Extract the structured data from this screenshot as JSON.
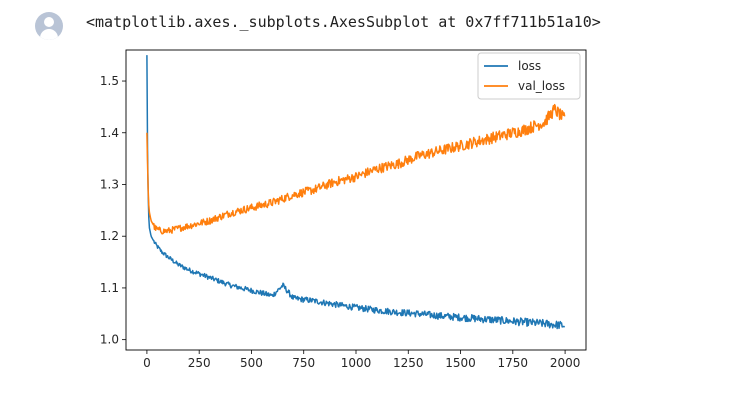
{
  "output": {
    "repr_text": "<matplotlib.axes._subplots.AxesSubplot at 0x7ff711b51a10>"
  },
  "chart_data": {
    "type": "line",
    "title": "",
    "xlabel": "",
    "ylabel": "",
    "xlim": [
      -100,
      2100
    ],
    "ylim": [
      0.98,
      1.56
    ],
    "xticks": [
      0,
      250,
      500,
      750,
      1000,
      1250,
      1500,
      1750,
      2000
    ],
    "yticks": [
      1.0,
      1.1,
      1.2,
      1.3,
      1.4,
      1.5
    ],
    "xtick_labels": [
      "0",
      "250",
      "500",
      "750",
      "1000",
      "1250",
      "1500",
      "1750",
      "2000"
    ],
    "ytick_labels": [
      "1.0",
      "1.1",
      "1.2",
      "1.3",
      "1.4",
      "1.5"
    ],
    "grid": false,
    "legend_position": "upper right",
    "series": [
      {
        "name": "loss",
        "color": "#1f77b4",
        "x": [
          0,
          2,
          5,
          10,
          20,
          40,
          70,
          100,
          150,
          200,
          300,
          400,
          500,
          600,
          650,
          700,
          800,
          900,
          1000,
          1100,
          1200,
          1300,
          1400,
          1500,
          1600,
          1700,
          1800,
          1900,
          2000
        ],
        "y": [
          1.55,
          1.4,
          1.3,
          1.22,
          1.2,
          1.185,
          1.17,
          1.16,
          1.145,
          1.135,
          1.12,
          1.105,
          1.095,
          1.085,
          1.105,
          1.08,
          1.075,
          1.068,
          1.062,
          1.057,
          1.053,
          1.05,
          1.046,
          1.043,
          1.04,
          1.037,
          1.034,
          1.031,
          1.027
        ]
      },
      {
        "name": "val_loss",
        "color": "#ff7f0e",
        "x": [
          0,
          2,
          5,
          10,
          20,
          40,
          70,
          100,
          150,
          200,
          300,
          400,
          500,
          600,
          700,
          800,
          900,
          1000,
          1100,
          1200,
          1300,
          1400,
          1500,
          1600,
          1700,
          1800,
          1900,
          1950,
          2000
        ],
        "y": [
          1.4,
          1.36,
          1.3,
          1.25,
          1.23,
          1.215,
          1.21,
          1.21,
          1.215,
          1.22,
          1.23,
          1.245,
          1.255,
          1.265,
          1.28,
          1.29,
          1.305,
          1.315,
          1.33,
          1.34,
          1.355,
          1.365,
          1.375,
          1.385,
          1.395,
          1.405,
          1.42,
          1.445,
          1.425
        ]
      }
    ]
  }
}
